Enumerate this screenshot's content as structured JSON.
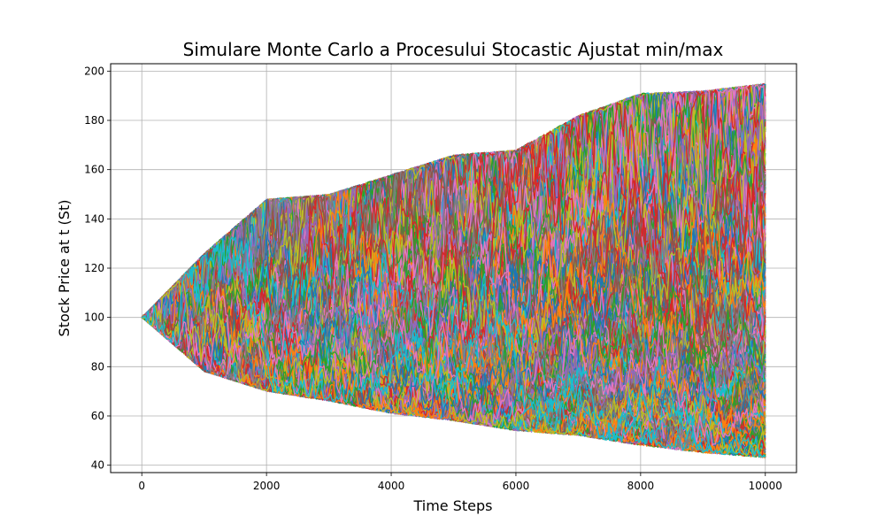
{
  "chart_data": {
    "type": "line",
    "title": "Simulare Monte Carlo a Procesului Stocastic Ajustat min/max",
    "xlabel": "Time Steps",
    "ylabel": "Stock Price at t (St)",
    "xlim": [
      -500,
      10500
    ],
    "ylim": [
      37,
      203
    ],
    "x_ticks": [
      0,
      2000,
      4000,
      6000,
      8000,
      10000
    ],
    "y_ticks": [
      40,
      60,
      80,
      100,
      120,
      140,
      160,
      180,
      200
    ],
    "grid": true,
    "n_steps": 10000,
    "start_value": 100,
    "series_count": 500,
    "envelope": {
      "x": [
        0,
        1000,
        2000,
        3000,
        4000,
        5000,
        6000,
        7000,
        8000,
        9000,
        10000
      ],
      "upper": [
        100,
        126,
        148,
        150,
        158,
        166,
        168,
        182,
        191,
        192,
        195
      ],
      "lower": [
        100,
        78,
        70,
        66,
        61,
        58,
        54,
        52,
        48,
        45,
        43
      ]
    },
    "colors": [
      "#1f77b4",
      "#ff7f0e",
      "#2ca02c",
      "#d62728",
      "#9467bd",
      "#8c564b",
      "#e377c2",
      "#7f7f7f",
      "#bcbd22",
      "#17becf"
    ]
  }
}
